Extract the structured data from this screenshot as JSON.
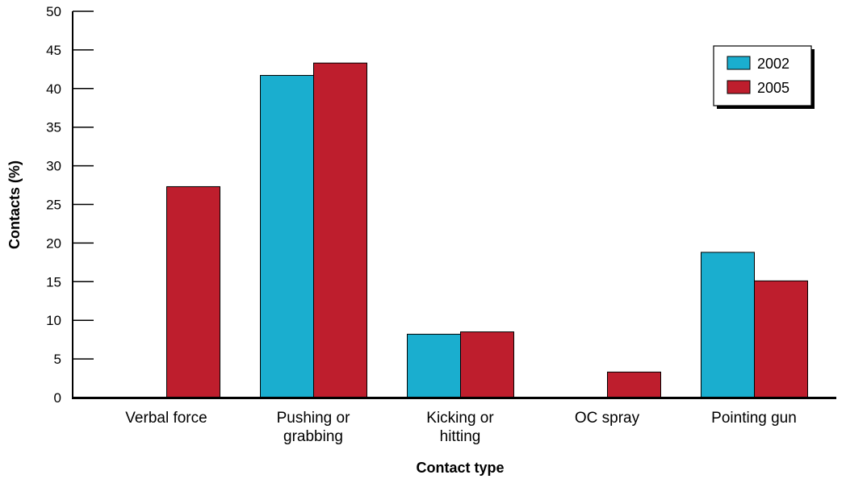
{
  "chart_data": {
    "type": "bar",
    "categories": [
      "Verbal force",
      "Pushing or grabbing",
      "Kicking or hitting",
      "OC spray",
      "Pointing gun"
    ],
    "category_lines": [
      [
        "Verbal force"
      ],
      [
        "Pushing or",
        "grabbing"
      ],
      [
        "Kicking or",
        "hitting"
      ],
      [
        "OC spray"
      ],
      [
        "Pointing gun"
      ]
    ],
    "series": [
      {
        "name": "2002",
        "color": "#1aaecf",
        "values": [
          null,
          41.7,
          8.2,
          null,
          18.8
        ]
      },
      {
        "name": "2005",
        "color": "#be1e2d",
        "values": [
          27.3,
          43.3,
          8.5,
          3.3,
          15.1
        ]
      }
    ],
    "xlabel": "Contact type",
    "ylabel": "Contacts (%)",
    "ylim": [
      0,
      50
    ],
    "yticks": [
      0,
      5,
      10,
      15,
      20,
      25,
      30,
      35,
      40,
      45,
      50
    ],
    "grid": false,
    "legend_position": "top-right"
  }
}
